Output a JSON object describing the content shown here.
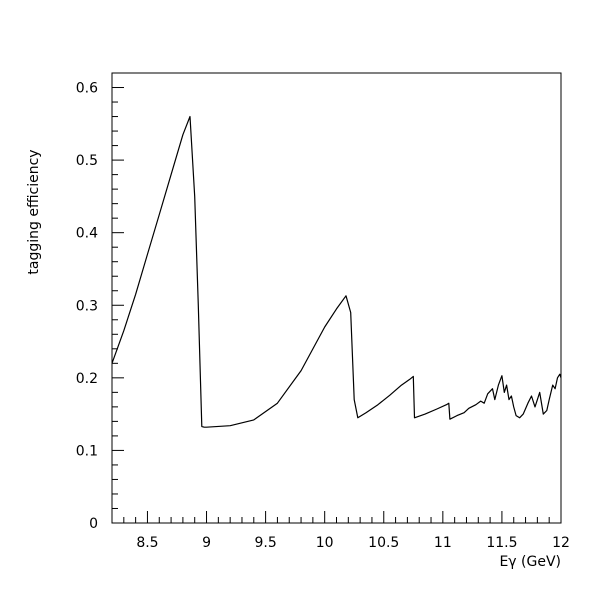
{
  "chart_data": {
    "type": "line",
    "title": "",
    "xlabel": "Eγ (GeV)",
    "ylabel": "tagging efficiency",
    "xlim": [
      8.2,
      12.0
    ],
    "ylim": [
      0,
      0.62
    ],
    "xticks": [
      8.5,
      9,
      9.5,
      10,
      10.5,
      11,
      11.5,
      12
    ],
    "xtick_labels": [
      "8.5",
      "9",
      "9.5",
      "10",
      "10.5",
      "11",
      "11.5",
      "12"
    ],
    "yticks": [
      0,
      0.1,
      0.2,
      0.3,
      0.4,
      0.5,
      0.6
    ],
    "ytick_labels": [
      "0",
      "0.1",
      "0.2",
      "0.3",
      "0.4",
      "0.5",
      "0.6"
    ],
    "grid": false,
    "series": [
      {
        "color": "#000000",
        "x": [
          8.2,
          8.3,
          8.4,
          8.5,
          8.6,
          8.7,
          8.8,
          8.86,
          8.9,
          8.93,
          8.96,
          8.98,
          9.0,
          9.2,
          9.4,
          9.6,
          9.8,
          10.0,
          10.1,
          10.18,
          10.22,
          10.25,
          10.28,
          10.35,
          10.45,
          10.55,
          10.65,
          10.72,
          10.75,
          10.76,
          10.85,
          10.95,
          11.03,
          11.05,
          11.06,
          11.12,
          11.18,
          11.22,
          11.28,
          11.32,
          11.35,
          11.38,
          11.42,
          11.44,
          11.47,
          11.5,
          11.52,
          11.54,
          11.56,
          11.58,
          11.6,
          11.62,
          11.65,
          11.68,
          11.72,
          11.75,
          11.78,
          11.82,
          11.85,
          11.88,
          11.9,
          11.93,
          11.95,
          11.97,
          11.99,
          12.0
        ],
        "y": [
          0.22,
          0.265,
          0.315,
          0.37,
          0.425,
          0.48,
          0.535,
          0.56,
          0.45,
          0.3,
          0.133,
          0.132,
          0.132,
          0.134,
          0.142,
          0.165,
          0.21,
          0.27,
          0.295,
          0.313,
          0.29,
          0.17,
          0.145,
          0.152,
          0.163,
          0.176,
          0.19,
          0.198,
          0.202,
          0.145,
          0.15,
          0.157,
          0.163,
          0.165,
          0.143,
          0.148,
          0.152,
          0.158,
          0.163,
          0.168,
          0.165,
          0.178,
          0.185,
          0.17,
          0.19,
          0.203,
          0.18,
          0.19,
          0.17,
          0.175,
          0.16,
          0.148,
          0.145,
          0.15,
          0.165,
          0.175,
          0.16,
          0.18,
          0.15,
          0.155,
          0.17,
          0.19,
          0.185,
          0.2,
          0.205,
          0.2
        ]
      }
    ]
  }
}
